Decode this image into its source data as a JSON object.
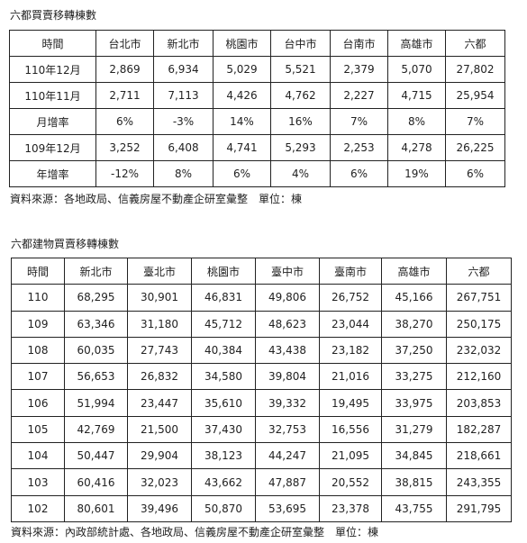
{
  "section1": {
    "title": "六都買賣移轉棟數",
    "headers": [
      "時間",
      "台北市",
      "新北市",
      "桃園市",
      "台中市",
      "台南市",
      "高雄市",
      "六都"
    ],
    "rows": [
      [
        "110年12月",
        "2,869",
        "6,934",
        "5,029",
        "5,521",
        "2,379",
        "5,070",
        "27,802"
      ],
      [
        "110年11月",
        "2,711",
        "7,113",
        "4,426",
        "4,762",
        "2,227",
        "4,715",
        "25,954"
      ],
      [
        "月增率",
        "6%",
        "-3%",
        "14%",
        "16%",
        "7%",
        "8%",
        "7%"
      ],
      [
        "109年12月",
        "3,252",
        "6,408",
        "4,741",
        "5,293",
        "2,253",
        "4,278",
        "26,225"
      ],
      [
        "年增率",
        "-12%",
        "8%",
        "6%",
        "4%",
        "6%",
        "19%",
        "6%"
      ]
    ],
    "source": "資料來源：各地政局、信義房屋不動產企研室彙整　單位：棟"
  },
  "section2": {
    "title": "六都建物買賣移轉棟數",
    "headers": [
      "時間",
      "新北市",
      "臺北市",
      "桃園市",
      "臺中市",
      "臺南市",
      "高雄市",
      "六都"
    ],
    "rows": [
      [
        "110",
        "68,295",
        "30,901",
        "46,831",
        "49,806",
        "26,752",
        "45,166",
        "267,751"
      ],
      [
        "109",
        "63,346",
        "31,180",
        "45,712",
        "48,623",
        "23,044",
        "38,270",
        "250,175"
      ],
      [
        "108",
        "60,035",
        "27,743",
        "40,384",
        "43,438",
        "23,182",
        "37,250",
        "232,032"
      ],
      [
        "107",
        "56,653",
        "26,832",
        "34,580",
        "39,804",
        "21,016",
        "33,275",
        "212,160"
      ],
      [
        "106",
        "51,994",
        "23,447",
        "35,610",
        "39,332",
        "19,495",
        "33,975",
        "203,853"
      ],
      [
        "105",
        "42,769",
        "21,500",
        "37,430",
        "32,753",
        "16,556",
        "31,279",
        "182,287"
      ],
      [
        "104",
        "50,447",
        "29,904",
        "38,123",
        "44,247",
        "21,095",
        "34,845",
        "218,661"
      ],
      [
        "103",
        "60,416",
        "32,023",
        "43,662",
        "47,887",
        "20,552",
        "38,815",
        "243,355"
      ],
      [
        "102",
        "80,601",
        "39,496",
        "50,870",
        "53,695",
        "23,378",
        "43,755",
        "291,795"
      ]
    ],
    "source": "資料來源：內政部統計處、各地政局、信義房屋不動產企研室彙整　單位：棟"
  }
}
